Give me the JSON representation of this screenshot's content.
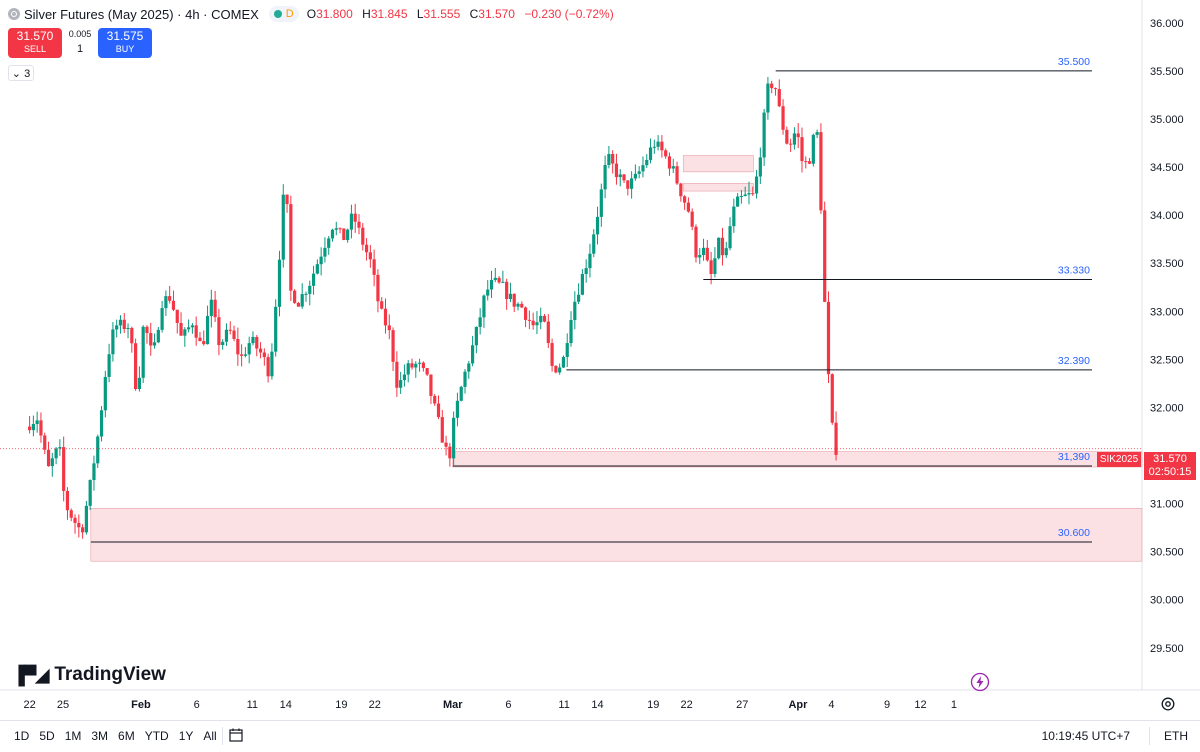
{
  "header": {
    "title": "Silver Futures (May 2025) · 4h · COMEX",
    "status_letter": "D",
    "ohlc": [
      {
        "k": "O",
        "v": "31.800"
      },
      {
        "k": "H",
        "v": "31.845"
      },
      {
        "k": "L",
        "v": "31.555"
      },
      {
        "k": "C",
        "v": "31.570"
      },
      {
        "k": "",
        "v": "−0.230 (−0.72%)"
      }
    ]
  },
  "trade": {
    "sell_price": "31.570",
    "sell_label": "SELL",
    "buy_price": "31.575",
    "buy_label": "BUY",
    "spread": "0.005",
    "qty": "1"
  },
  "indicator_toggle": "3",
  "logo_text": "TradingView",
  "price_tag": {
    "symbol": "SIK2025",
    "price": "31.570",
    "countdown": "02:50:15"
  },
  "bottom_bar": {
    "ranges": [
      "1D",
      "5D",
      "1M",
      "3M",
      "6M",
      "YTD",
      "1Y",
      "All"
    ],
    "clock": "10:19:45 UTC+7",
    "session": "ETH"
  },
  "colors": {
    "up": "#089981",
    "down": "#f23645",
    "level_text": "#2962ff",
    "zone": "#f8c9cd"
  },
  "chart_data": {
    "type": "candlestick",
    "y_range": [
      29.3,
      36.05
    ],
    "y_ticks": [
      "36.000",
      "35.500",
      "35.000",
      "34.500",
      "34.000",
      "33.500",
      "33.000",
      "32.500",
      "32.000",
      "31.500",
      "31.000",
      "30.500",
      "30.000",
      "29.500"
    ],
    "x_ticks": [
      {
        "label": "22",
        "day": -3
      },
      {
        "label": "25",
        "day": 0
      },
      {
        "label": "Feb",
        "day": 7
      },
      {
        "label": "6",
        "day": 12
      },
      {
        "label": "11",
        "day": 17
      },
      {
        "label": "14",
        "day": 20
      },
      {
        "label": "19",
        "day": 25
      },
      {
        "label": "22",
        "day": 28
      },
      {
        "label": "Mar",
        "day": 35
      },
      {
        "label": "6",
        "day": 40
      },
      {
        "label": "11",
        "day": 45
      },
      {
        "label": "14",
        "day": 48
      },
      {
        "label": "19",
        "day": 53
      },
      {
        "label": "22",
        "day": 56
      },
      {
        "label": "27",
        "day": 61
      },
      {
        "label": "Apr",
        "day": 66
      },
      {
        "label": "4",
        "day": 69
      },
      {
        "label": "9",
        "day": 74
      },
      {
        "label": "12",
        "day": 77
      },
      {
        "label": "1",
        "day": 80
      }
    ],
    "last_day": 69.6,
    "levels": [
      {
        "value": 35.5,
        "label": "35.500",
        "from_day": 64.0
      },
      {
        "value": 33.33,
        "label": "33.330",
        "from_day": 57.5
      },
      {
        "value": 32.39,
        "label": "32.390",
        "from_day": 45.2
      },
      {
        "value": 31.39,
        "label": "31,390",
        "from_day": 35.0
      },
      {
        "value": 30.6,
        "label": "30.600",
        "from_day": 2.5
      }
    ],
    "zones": [
      {
        "from_day": 2.5,
        "y": [
          30.4,
          30.95
        ]
      },
      {
        "from_day": 35.0,
        "y": [
          31.38,
          31.54
        ]
      },
      {
        "from_day": 55.7,
        "to_day": 62.0,
        "y": [
          34.45,
          34.62
        ]
      },
      {
        "from_day": 55.7,
        "to_day": 62.0,
        "y": [
          34.25,
          34.33
        ]
      }
    ],
    "current_price": 31.57,
    "waypoints": [
      [
        -3.0,
        31.8
      ],
      [
        -2.0,
        31.9
      ],
      [
        -1.0,
        31.35
      ],
      [
        0.0,
        31.6
      ],
      [
        0.5,
        31.0
      ],
      [
        1.2,
        30.85
      ],
      [
        2.0,
        30.7
      ],
      [
        2.8,
        31.2
      ],
      [
        3.6,
        31.8
      ],
      [
        4.3,
        32.5
      ],
      [
        5.0,
        32.85
      ],
      [
        6.3,
        32.85
      ],
      [
        7.0,
        32.1
      ],
      [
        7.6,
        32.9
      ],
      [
        8.4,
        32.5
      ],
      [
        9.2,
        33.1
      ],
      [
        10.0,
        33.15
      ],
      [
        11.0,
        32.7
      ],
      [
        12.0,
        32.9
      ],
      [
        12.8,
        32.6
      ],
      [
        13.6,
        33.1
      ],
      [
        14.4,
        32.65
      ],
      [
        15.3,
        32.8
      ],
      [
        16.3,
        32.5
      ],
      [
        17.2,
        32.7
      ],
      [
        18.2,
        32.55
      ],
      [
        18.9,
        32.35
      ],
      [
        19.6,
        33.3
      ],
      [
        20.3,
        34.45
      ],
      [
        20.8,
        33.2
      ],
      [
        21.5,
        33.1
      ],
      [
        22.5,
        33.3
      ],
      [
        23.5,
        33.6
      ],
      [
        24.5,
        33.9
      ],
      [
        25.5,
        33.75
      ],
      [
        26.4,
        34.0
      ],
      [
        27.3,
        33.7
      ],
      [
        28.0,
        33.5
      ],
      [
        28.8,
        33.0
      ],
      [
        29.6,
        32.8
      ],
      [
        30.4,
        32.2
      ],
      [
        31.2,
        32.4
      ],
      [
        32.2,
        32.45
      ],
      [
        33.0,
        32.3
      ],
      [
        33.8,
        31.95
      ],
      [
        34.6,
        31.6
      ],
      [
        35.0,
        31.45
      ],
      [
        35.5,
        31.9
      ],
      [
        36.3,
        32.3
      ],
      [
        37.3,
        32.7
      ],
      [
        38.3,
        33.2
      ],
      [
        39.0,
        33.3
      ],
      [
        39.8,
        33.25
      ],
      [
        40.7,
        33.1
      ],
      [
        41.5,
        33.05
      ],
      [
        42.5,
        32.85
      ],
      [
        43.5,
        32.9
      ],
      [
        44.3,
        32.4
      ],
      [
        45.2,
        32.45
      ],
      [
        46.0,
        33.0
      ],
      [
        46.8,
        33.3
      ],
      [
        47.6,
        33.6
      ],
      [
        48.4,
        34.05
      ],
      [
        49.2,
        34.6
      ],
      [
        50.0,
        34.45
      ],
      [
        50.8,
        34.3
      ],
      [
        51.6,
        34.35
      ],
      [
        52.6,
        34.55
      ],
      [
        53.4,
        34.75
      ],
      [
        54.2,
        34.65
      ],
      [
        55.0,
        34.5
      ],
      [
        55.8,
        34.25
      ],
      [
        56.5,
        34.05
      ],
      [
        57.2,
        33.6
      ],
      [
        57.8,
        33.65
      ],
      [
        58.5,
        33.35
      ],
      [
        59.2,
        33.7
      ],
      [
        59.8,
        33.55
      ],
      [
        60.4,
        34.0
      ],
      [
        61.0,
        34.15
      ],
      [
        61.8,
        34.2
      ],
      [
        62.4,
        34.2
      ],
      [
        63.0,
        34.7
      ],
      [
        63.6,
        35.3
      ],
      [
        64.2,
        35.4
      ],
      [
        64.8,
        35.0
      ],
      [
        65.5,
        34.7
      ],
      [
        66.2,
        34.9
      ],
      [
        66.8,
        34.5
      ],
      [
        67.4,
        34.6
      ],
      [
        68.0,
        34.95
      ],
      [
        68.3,
        34.4
      ],
      [
        68.6,
        33.5
      ],
      [
        68.9,
        32.6
      ],
      [
        69.2,
        32.1
      ],
      [
        69.4,
        31.8
      ],
      [
        69.6,
        31.57
      ]
    ]
  }
}
